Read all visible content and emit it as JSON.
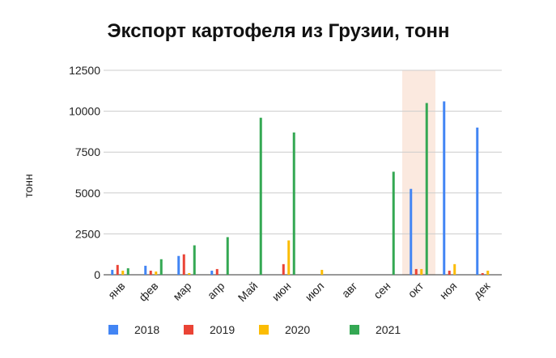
{
  "chart_data": {
    "type": "bar",
    "title": "Экспорт картофеля из Грузии, тонн",
    "y_label": "тонн",
    "categories": [
      "янв",
      "фев",
      "мар",
      "апр",
      "Май",
      "июн",
      "июл",
      "авг",
      "сен",
      "окт",
      "ноя",
      "дек"
    ],
    "series": [
      {
        "name": "2018",
        "color": "#4285f4",
        "values": [
          300,
          550,
          1150,
          250,
          0,
          0,
          0,
          0,
          0,
          5250,
          10600,
          9000
        ]
      },
      {
        "name": "2019",
        "color": "#ea4335",
        "values": [
          600,
          250,
          1250,
          350,
          0,
          650,
          0,
          0,
          0,
          350,
          250,
          100
        ]
      },
      {
        "name": "2020",
        "color": "#fbbc04",
        "values": [
          250,
          200,
          100,
          0,
          0,
          2100,
          300,
          0,
          0,
          350,
          650,
          250
        ]
      },
      {
        "name": "2021",
        "color": "#34a853",
        "values": [
          400,
          950,
          1800,
          2300,
          9600,
          8700,
          0,
          0,
          6300,
          10500,
          0,
          0
        ]
      }
    ],
    "ylim": [
      0,
      12500
    ],
    "yticks": [
      0,
      2500,
      5000,
      7500,
      10000,
      12500
    ],
    "grid": true,
    "highlight": {
      "category_index": 9,
      "color": "#fbe9df"
    },
    "legend": "bottom"
  }
}
